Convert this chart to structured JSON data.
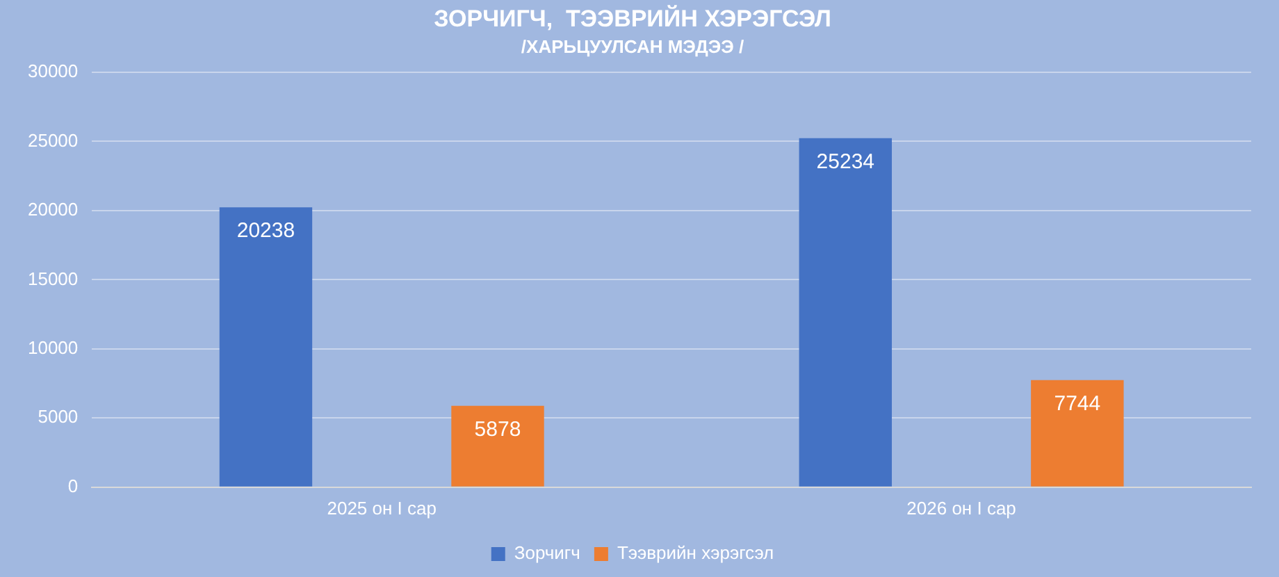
{
  "chart_data": {
    "type": "bar",
    "title": "ЗОРЧИГЧ,  ТЭЭВРИЙН ХЭРЭГСЭЛ",
    "subtitle": "/ХАРЬЦУУЛСАН МЭДЭЭ /",
    "categories": [
      "2025 он I сар",
      "2026 он I сар"
    ],
    "series": [
      {
        "name": "Зорчигч",
        "color": "#4472c4",
        "values": [
          20238,
          25234
        ]
      },
      {
        "name": "Тээврийн хэрэгсэл",
        "color": "#ed7d31",
        "values": [
          5878,
          7744
        ]
      }
    ],
    "ylim": [
      0,
      30000
    ],
    "yticks": [
      0,
      5000,
      10000,
      15000,
      20000,
      25000,
      30000
    ],
    "grid": "y",
    "legend": "bottom",
    "data_labels": true
  }
}
